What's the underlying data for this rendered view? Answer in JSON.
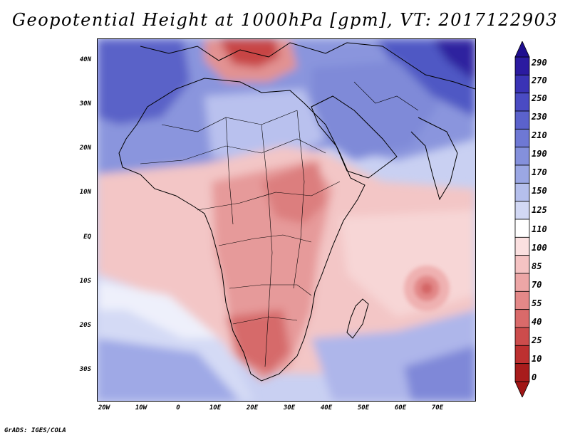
{
  "title": "Geopotential Height at 1000hPa [gpm], VT: 2017122903",
  "footer": "GrADS: IGES/COLA",
  "axes": {
    "y_ticks": [
      "40N",
      "30N",
      "20N",
      "10N",
      "EQ",
      "10S",
      "20S",
      "30S"
    ],
    "x_ticks": [
      "20W",
      "10W",
      "0",
      "10E",
      "20E",
      "30E",
      "40E",
      "50E",
      "60E",
      "70E"
    ]
  },
  "colorbar": {
    "labels": [
      "290",
      "270",
      "250",
      "230",
      "210",
      "190",
      "170",
      "150",
      "125",
      "110",
      "100",
      "85",
      "70",
      "55",
      "40",
      "25",
      "10",
      "0"
    ],
    "colors": [
      "#2b1aa0",
      "#3a33b5",
      "#4a4bc3",
      "#5b62cc",
      "#6e78d4",
      "#8490dc",
      "#9ba7e4",
      "#b5bfec",
      "#d2d8f4",
      "#ffffff",
      "#fbe0e0",
      "#f5c3c3",
      "#eda6a6",
      "#e48888",
      "#d96a6a",
      "#cc4c4c",
      "#bd3030",
      "#a81c1c"
    ]
  },
  "chart_data": {
    "type": "heatmap",
    "title": "Geopotential Height at 1000hPa [gpm], VT: 2017122903",
    "variable": "Geopotential Height at 1000hPa",
    "units": "gpm",
    "valid_time": "2017122903",
    "x_range": [
      "20W",
      "80E"
    ],
    "y_range": [
      "36S",
      "44N"
    ],
    "x_ticks": [
      "20W",
      "10W",
      "0",
      "10E",
      "20E",
      "30E",
      "40E",
      "50E",
      "60E",
      "70E"
    ],
    "y_ticks": [
      "40N",
      "30N",
      "20N",
      "10N",
      "EQ",
      "10S",
      "20S",
      "30S"
    ],
    "levels": [
      0,
      10,
      25,
      40,
      55,
      70,
      85,
      100,
      110,
      125,
      150,
      170,
      190,
      210,
      230,
      250,
      270,
      290
    ]
  }
}
